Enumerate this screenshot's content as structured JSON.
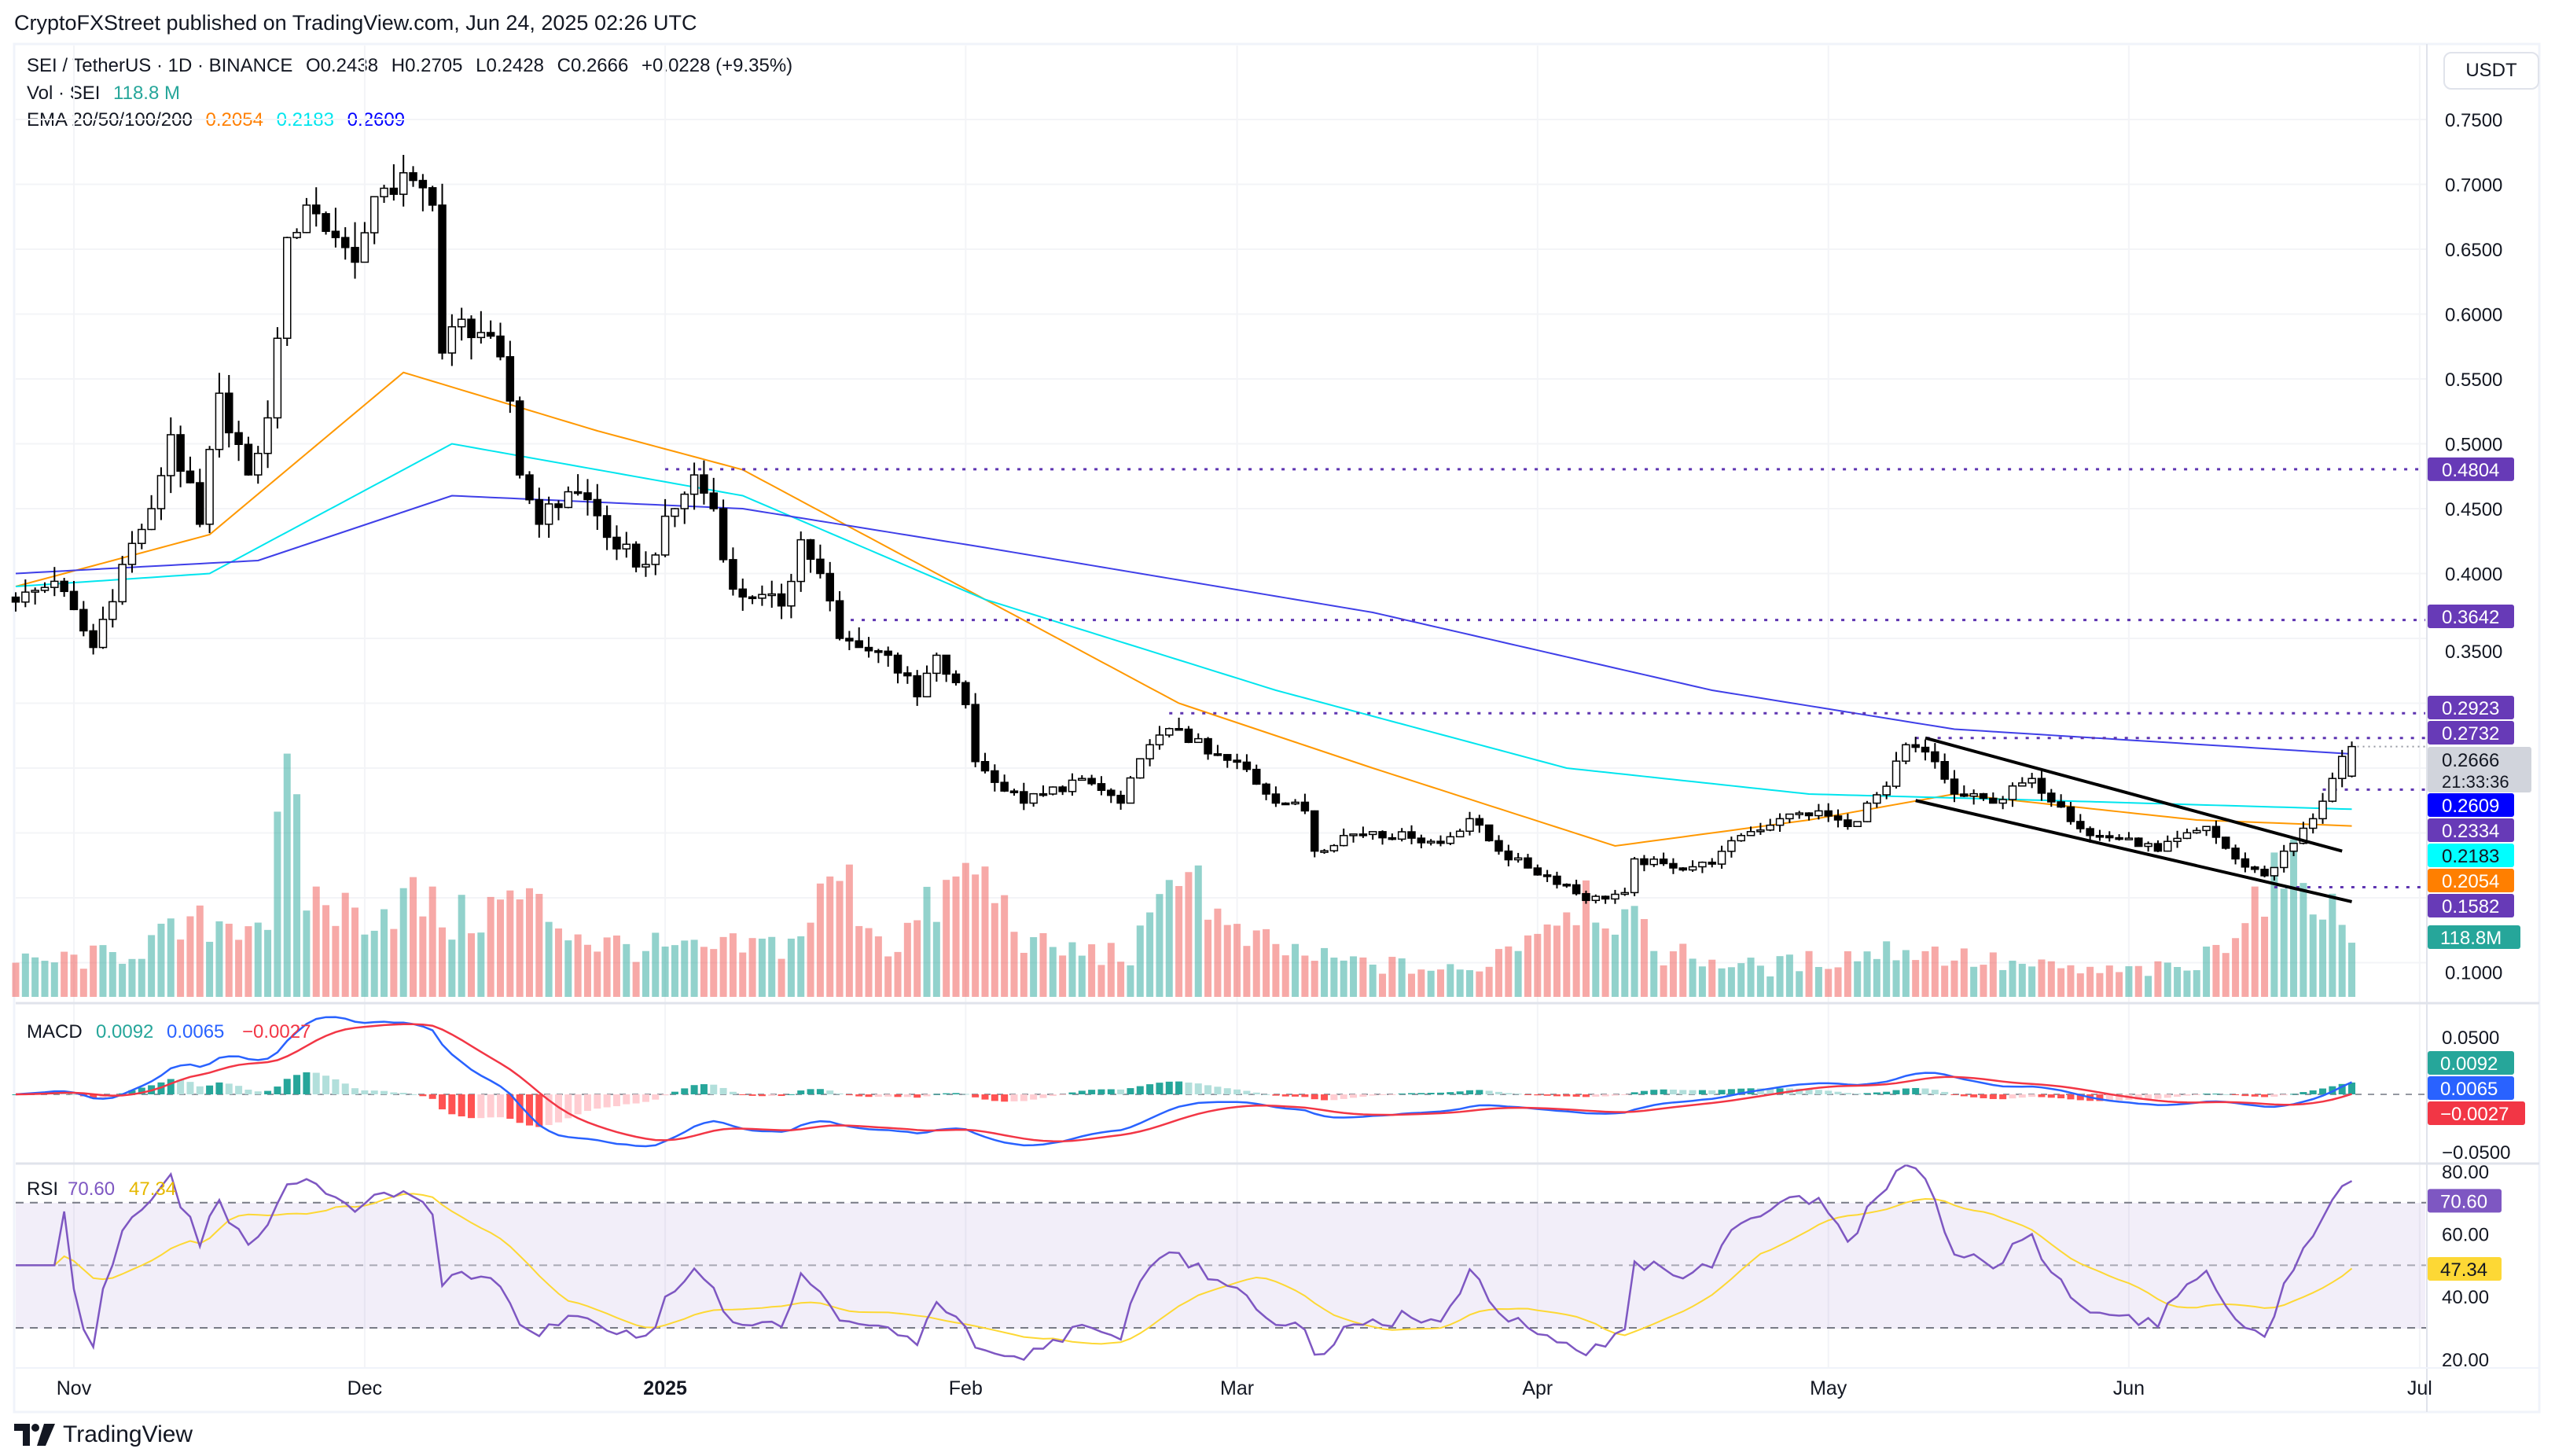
{
  "header": {
    "published": "CryptoFXStreet published on TradingView.com, Jun 24, 2025 02:26 UTC"
  },
  "legend": {
    "symbol": "SEI / TetherUS · 1D · BINANCE",
    "open": "O0.2438",
    "high": "H0.2705",
    "low": "L0.2428",
    "close": "C0.2666",
    "change": "+0.0228 (+9.35%)",
    "vol_label": "Vol · SEI",
    "vol_value": "118.8 M",
    "ema_label": "EMA 20/50/100/200",
    "ema_values": [
      {
        "text": "0.2054",
        "color": "#ff7f00"
      },
      {
        "text": "0.2183",
        "color": "#00e5ee"
      },
      {
        "text": "0.2609",
        "color": "#0000ff"
      }
    ]
  },
  "currency_button": "USDT",
  "price_axis_ticks": [
    "0.7500",
    "0.7000",
    "0.6500",
    "0.6000",
    "0.5500",
    "0.5000",
    "0.4500",
    "0.4000",
    "0.3500",
    "0.1000"
  ],
  "price_labels": [
    {
      "text": "0.4804",
      "bg": "#673ab7",
      "fg": "#ffffff"
    },
    {
      "text": "0.3642",
      "bg": "#673ab7",
      "fg": "#ffffff"
    },
    {
      "text": "0.2923",
      "bg": "#673ab7",
      "fg": "#ffffff"
    },
    {
      "text": "0.2732",
      "bg": "#673ab7",
      "fg": "#ffffff"
    },
    {
      "text": "0.2609",
      "bg": "#0000ff",
      "fg": "#ffffff"
    },
    {
      "text": "0.2334",
      "bg": "#673ab7",
      "fg": "#ffffff"
    },
    {
      "text": "0.2183",
      "bg": "#00ffff",
      "fg": "#131722"
    },
    {
      "text": "0.2054",
      "bg": "#ff7f00",
      "fg": "#ffffff"
    },
    {
      "text": "0.1582",
      "bg": "#673ab7",
      "fg": "#ffffff"
    }
  ],
  "current_price": {
    "text": "0.2666",
    "countdown": "21:33:36"
  },
  "volume_label": "118.8M",
  "macd": {
    "label": "MACD",
    "values": [
      {
        "text": "0.0092",
        "color": "#26a69a"
      },
      {
        "text": "0.0065",
        "color": "#2962ff"
      },
      {
        "text": "−0.0027",
        "color": "#f23645"
      }
    ],
    "axis_ticks": [
      "0.0500",
      "−0.0500"
    ]
  },
  "rsi": {
    "label": "RSI",
    "values": [
      {
        "text": "70.60",
        "color": "#7e57c2"
      },
      {
        "text": "47.34",
        "color": "#fdd835"
      }
    ],
    "axis_ticks": [
      "80.00",
      "60.00",
      "40.00",
      "20.00"
    ]
  },
  "time_axis": [
    {
      "label": "Nov",
      "day": 6
    },
    {
      "label": "Dec",
      "day": 36
    },
    {
      "label": "2025",
      "day": 67
    },
    {
      "label": "Feb",
      "day": 98
    },
    {
      "label": "Mar",
      "day": 126
    },
    {
      "label": "Apr",
      "day": 157
    },
    {
      "label": "May",
      "day": 187
    },
    {
      "label": "Jun",
      "day": 218
    },
    {
      "label": "Jul",
      "day": 248
    }
  ],
  "footer": {
    "brand": "TradingView"
  },
  "chart_data": {
    "type": "candlestick",
    "title": "SEI / TetherUS · 1D · BINANCE",
    "ylabel": "USDT",
    "ylim": [
      0.07,
      0.78
    ],
    "days": 242,
    "last_ohlc": {
      "open": 0.2438,
      "high": 0.2705,
      "low": 0.2428,
      "close": 0.2666,
      "volume_m": 118.8
    },
    "close_keypoints": [
      [
        0,
        0.378
      ],
      [
        4,
        0.394
      ],
      [
        8,
        0.343
      ],
      [
        11,
        0.407
      ],
      [
        14,
        0.45
      ],
      [
        16,
        0.507
      ],
      [
        19,
        0.438
      ],
      [
        21,
        0.539
      ],
      [
        24,
        0.476
      ],
      [
        26,
        0.52
      ],
      [
        28,
        0.659
      ],
      [
        30,
        0.684
      ],
      [
        33,
        0.659
      ],
      [
        35,
        0.64
      ],
      [
        38,
        0.697
      ],
      [
        41,
        0.703
      ],
      [
        43,
        0.684
      ],
      [
        44,
        0.57
      ],
      [
        46,
        0.596
      ],
      [
        49,
        0.583
      ],
      [
        51,
        0.533
      ],
      [
        52,
        0.476
      ],
      [
        54,
        0.438
      ],
      [
        57,
        0.463
      ],
      [
        59,
        0.457
      ],
      [
        62,
        0.419
      ],
      [
        65,
        0.407
      ],
      [
        68,
        0.45
      ],
      [
        70,
        0.476
      ],
      [
        72,
        0.45
      ],
      [
        74,
        0.388
      ],
      [
        76,
        0.381
      ],
      [
        79,
        0.375
      ],
      [
        81,
        0.426
      ],
      [
        83,
        0.4
      ],
      [
        85,
        0.35
      ],
      [
        87,
        0.343
      ],
      [
        90,
        0.337
      ],
      [
        93,
        0.305
      ],
      [
        95,
        0.337
      ],
      [
        98,
        0.299
      ],
      [
        99,
        0.255
      ],
      [
        101,
        0.239
      ],
      [
        104,
        0.223
      ],
      [
        106,
        0.23
      ],
      [
        110,
        0.242
      ],
      [
        114,
        0.223
      ],
      [
        117,
        0.268
      ],
      [
        120,
        0.28
      ],
      [
        123,
        0.261
      ],
      [
        127,
        0.249
      ],
      [
        129,
        0.23
      ],
      [
        133,
        0.217
      ],
      [
        134,
        0.186
      ],
      [
        137,
        0.198
      ],
      [
        140,
        0.201
      ],
      [
        144,
        0.196
      ],
      [
        147,
        0.192
      ],
      [
        150,
        0.211
      ],
      [
        153,
        0.186
      ],
      [
        156,
        0.173
      ],
      [
        160,
        0.16
      ],
      [
        162,
        0.148
      ],
      [
        166,
        0.154
      ],
      [
        167,
        0.18
      ],
      [
        171,
        0.173
      ],
      [
        175,
        0.176
      ],
      [
        178,
        0.198
      ],
      [
        182,
        0.211
      ],
      [
        186,
        0.217
      ],
      [
        189,
        0.205
      ],
      [
        193,
        0.236
      ],
      [
        195,
        0.268
      ],
      [
        198,
        0.255
      ],
      [
        200,
        0.23
      ],
      [
        204,
        0.223
      ],
      [
        208,
        0.242
      ],
      [
        211,
        0.22
      ],
      [
        214,
        0.198
      ],
      [
        218,
        0.196
      ],
      [
        221,
        0.186
      ],
      [
        226,
        0.205
      ],
      [
        229,
        0.18
      ],
      [
        232,
        0.167
      ],
      [
        235,
        0.192
      ],
      [
        237,
        0.211
      ],
      [
        239,
        0.242
      ],
      [
        241,
        0.2666
      ]
    ],
    "volume_keypoints_m": [
      [
        0,
        80
      ],
      [
        10,
        100
      ],
      [
        20,
        180
      ],
      [
        26,
        200
      ],
      [
        28,
        500
      ],
      [
        30,
        250
      ],
      [
        35,
        200
      ],
      [
        41,
        240
      ],
      [
        45,
        180
      ],
      [
        52,
        240
      ],
      [
        60,
        130
      ],
      [
        70,
        110
      ],
      [
        80,
        130
      ],
      [
        85,
        300
      ],
      [
        90,
        120
      ],
      [
        99,
        310
      ],
      [
        105,
        120
      ],
      [
        115,
        100
      ],
      [
        118,
        200
      ],
      [
        120,
        380
      ],
      [
        125,
        150
      ],
      [
        135,
        90
      ],
      [
        150,
        60
      ],
      [
        162,
        260
      ],
      [
        170,
        110
      ],
      [
        180,
        70
      ],
      [
        195,
        120
      ],
      [
        205,
        80
      ],
      [
        215,
        60
      ],
      [
        225,
        70
      ],
      [
        232,
        270
      ],
      [
        237,
        300
      ],
      [
        239,
        200
      ],
      [
        241,
        118.8
      ]
    ],
    "ema_series": [
      {
        "name": "EMA 50",
        "color": "#ff9800",
        "keypoints": [
          [
            0,
            0.39
          ],
          [
            20,
            0.43
          ],
          [
            40,
            0.555
          ],
          [
            60,
            0.51
          ],
          [
            75,
            0.48
          ],
          [
            95,
            0.4
          ],
          [
            120,
            0.3
          ],
          [
            140,
            0.25
          ],
          [
            165,
            0.19
          ],
          [
            185,
            0.21
          ],
          [
            200,
            0.23
          ],
          [
            225,
            0.21
          ],
          [
            241,
            0.2054
          ]
        ]
      },
      {
        "name": "EMA 100",
        "color": "#00e5ee",
        "keypoints": [
          [
            0,
            0.39
          ],
          [
            20,
            0.4
          ],
          [
            45,
            0.5
          ],
          [
            75,
            0.46
          ],
          [
            100,
            0.38
          ],
          [
            130,
            0.31
          ],
          [
            160,
            0.25
          ],
          [
            185,
            0.23
          ],
          [
            210,
            0.225
          ],
          [
            241,
            0.2183
          ]
        ]
      },
      {
        "name": "EMA 200",
        "color": "#3f3fe8",
        "keypoints": [
          [
            0,
            0.4
          ],
          [
            25,
            0.41
          ],
          [
            45,
            0.46
          ],
          [
            75,
            0.45
          ],
          [
            100,
            0.42
          ],
          [
            140,
            0.37
          ],
          [
            175,
            0.31
          ],
          [
            200,
            0.28
          ],
          [
            241,
            0.2609
          ]
        ]
      }
    ],
    "horizontal_levels": [
      {
        "price": 0.4804,
        "from_day": 67
      },
      {
        "price": 0.3642,
        "from_day": 85
      },
      {
        "price": 0.2923,
        "from_day": 119
      },
      {
        "price": 0.2732,
        "from_day": 196
      },
      {
        "price": 0.2334,
        "from_day": 238
      },
      {
        "price": 0.1582,
        "from_day": 233
      }
    ],
    "channel": [
      {
        "from": [
          197,
          0.2732
        ],
        "to": [
          240,
          0.186
        ]
      },
      {
        "from": [
          196,
          0.225
        ],
        "to": [
          241,
          0.147
        ]
      }
    ],
    "macd_ylim": [
      -0.05,
      0.05
    ],
    "rsi_ylim": [
      20,
      80
    ],
    "rsi_bands": [
      70,
      50,
      30
    ]
  }
}
